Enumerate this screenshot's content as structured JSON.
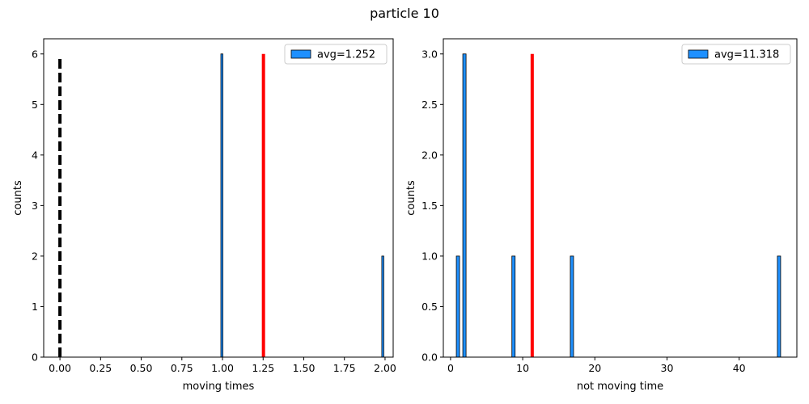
{
  "figure": {
    "title": "particle 10"
  },
  "chart_data": [
    {
      "type": "bar",
      "xlabel": "moving times",
      "ylabel": "counts",
      "xlim": [
        -0.1,
        2.05
      ],
      "ylim": [
        0,
        6.3
      ],
      "xticks": [
        "0.00",
        "0.25",
        "0.50",
        "0.75",
        "1.00",
        "1.25",
        "1.50",
        "1.75",
        "2.00"
      ],
      "xtick_values": [
        0,
        0.25,
        0.5,
        0.75,
        1.0,
        1.25,
        1.5,
        1.75,
        2.0
      ],
      "yticks": [
        "0",
        "1",
        "2",
        "3",
        "4",
        "5",
        "6"
      ],
      "ytick_values": [
        0,
        1,
        2,
        3,
        4,
        5,
        6
      ],
      "bar_color": "#1e90ff",
      "bar_edge_color": "#000000",
      "bins": [
        {
          "x_start": 0.99,
          "x_end": 1.0,
          "count": 6
        },
        {
          "x_start": 1.98,
          "x_end": 1.99,
          "count": 2
        }
      ],
      "legend": {
        "label": "avg=1.252",
        "location": "upper right"
      },
      "mean_line": {
        "x": 1.252,
        "height": 6,
        "color": "#ff0000"
      },
      "zero_line": {
        "x": 0,
        "height": 5.9,
        "color": "#000000",
        "style": "dashed"
      },
      "grid": false
    },
    {
      "type": "bar",
      "xlabel": "not moving time",
      "ylabel": "counts",
      "xlim": [
        -1.0,
        48.0
      ],
      "ylim": [
        0,
        3.15
      ],
      "xticks": [
        "0",
        "10",
        "20",
        "30",
        "40"
      ],
      "xtick_values": [
        0,
        10,
        20,
        30,
        40
      ],
      "yticks": [
        "0.0",
        "0.5",
        "1.0",
        "1.5",
        "2.0",
        "2.5",
        "3.0"
      ],
      "ytick_values": [
        0,
        0.5,
        1.0,
        1.5,
        2.0,
        2.5,
        3.0
      ],
      "bar_color": "#1e90ff",
      "bar_edge_color": "#000000",
      "bins": [
        {
          "x_start": 0.8,
          "x_end": 1.25,
          "count": 1
        },
        {
          "x_start": 1.7,
          "x_end": 2.15,
          "count": 3
        },
        {
          "x_start": 8.5,
          "x_end": 8.95,
          "count": 1
        },
        {
          "x_start": 16.6,
          "x_end": 17.05,
          "count": 1
        },
        {
          "x_start": 45.3,
          "x_end": 45.75,
          "count": 1
        }
      ],
      "legend": {
        "label": "avg=11.318",
        "location": "upper right"
      },
      "mean_line": {
        "x": 11.318,
        "height": 3,
        "color": "#ff0000"
      },
      "grid": false
    }
  ]
}
